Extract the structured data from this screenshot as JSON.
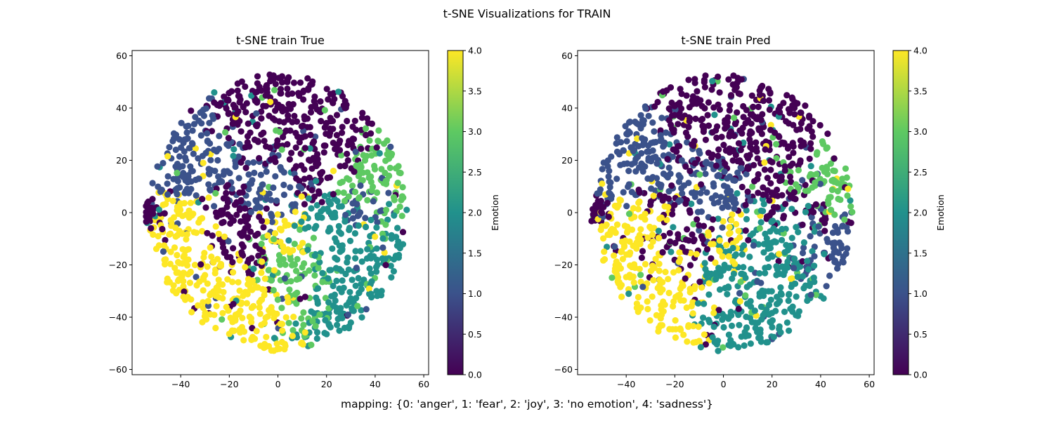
{
  "figure": {
    "suptitle": "t-SNE Visualizations for TRAIN",
    "footer": "mapping: {0: 'anger', 1: 'fear', 2: 'joy', 3: 'no emotion', 4: 'sadness'}"
  },
  "colormap": {
    "name": "viridis",
    "stops": [
      "#440154",
      "#3b528b",
      "#21918c",
      "#5ec962",
      "#fde725"
    ]
  },
  "chart_data": [
    {
      "type": "scatter",
      "title": "t-SNE train True",
      "xlim": [
        -60,
        62
      ],
      "ylim": [
        -62,
        62
      ],
      "xticks": [
        -40,
        -20,
        0,
        20,
        40,
        60
      ],
      "yticks": [
        -60,
        -40,
        -20,
        0,
        20,
        40,
        60
      ],
      "colorbar": {
        "label": "Emotion",
        "range": [
          0.0,
          4.0
        ],
        "ticks": [
          "0.0",
          "0.5",
          "1.0",
          "1.5",
          "2.0",
          "2.5",
          "3.0",
          "3.5",
          "4.0"
        ]
      },
      "regions": [
        {
          "cx": -5,
          "cy": 40,
          "r": 14,
          "class": 0
        },
        {
          "cx": 20,
          "cy": 45,
          "r": 6,
          "class": 0
        },
        {
          "cx": 15,
          "cy": 20,
          "r": 10,
          "class": 0
        },
        {
          "cx": -20,
          "cy": 0,
          "r": 8,
          "class": 0
        },
        {
          "cx": -18,
          "cy": -10,
          "r": 8,
          "class": 0
        },
        {
          "cx": -52,
          "cy": 0,
          "r": 3,
          "class": 0
        },
        {
          "cx": 35,
          "cy": 2,
          "r": 6,
          "class": 1
        },
        {
          "cx": -35,
          "cy": 20,
          "r": 12,
          "class": 1
        },
        {
          "cx": -5,
          "cy": 10,
          "r": 10,
          "class": 1
        },
        {
          "cx": 35,
          "cy": -25,
          "r": 12,
          "class": 2
        },
        {
          "cx": 20,
          "cy": -10,
          "r": 12,
          "class": 2
        },
        {
          "cx": 45,
          "cy": -25,
          "r": 8,
          "class": 2
        },
        {
          "cx": 10,
          "cy": -20,
          "r": 10,
          "class": 3
        },
        {
          "cx": 40,
          "cy": 10,
          "r": 10,
          "class": 3
        },
        {
          "cx": -25,
          "cy": -30,
          "r": 10,
          "class": 4
        },
        {
          "cx": -10,
          "cy": -35,
          "r": 8,
          "class": 4
        },
        {
          "cx": -35,
          "cy": -5,
          "r": 8,
          "class": 4
        },
        {
          "cx": 5,
          "cy": -10,
          "r": 6,
          "class": 4
        }
      ],
      "seed": 7
    },
    {
      "type": "scatter",
      "title": "t-SNE train Pred",
      "xlim": [
        -60,
        62
      ],
      "ylim": [
        -62,
        62
      ],
      "xticks": [
        -40,
        -20,
        0,
        20,
        40,
        60
      ],
      "yticks": [
        -60,
        -40,
        -20,
        0,
        20,
        40,
        60
      ],
      "colorbar": {
        "label": "Emotion",
        "range": [
          0.0,
          4.0
        ],
        "ticks": [
          "0.0",
          "0.5",
          "1.0",
          "1.5",
          "2.0",
          "2.5",
          "3.0",
          "3.5",
          "4.0"
        ]
      },
      "regions": [
        {
          "cx": -2,
          "cy": 40,
          "r": 15,
          "class": 0
        },
        {
          "cx": 18,
          "cy": 22,
          "r": 12,
          "class": 0
        },
        {
          "cx": -20,
          "cy": -8,
          "r": 10,
          "class": 0
        },
        {
          "cx": 35,
          "cy": 2,
          "r": 7,
          "class": 0
        },
        {
          "cx": -52,
          "cy": 0,
          "r": 3,
          "class": 0
        },
        {
          "cx": -35,
          "cy": 20,
          "r": 12,
          "class": 1
        },
        {
          "cx": -5,
          "cy": 10,
          "r": 10,
          "class": 1
        },
        {
          "cx": 40,
          "cy": -20,
          "r": 10,
          "class": 1
        },
        {
          "cx": 20,
          "cy": -20,
          "r": 14,
          "class": 2
        },
        {
          "cx": 35,
          "cy": -28,
          "r": 12,
          "class": 2
        },
        {
          "cx": 5,
          "cy": -30,
          "r": 8,
          "class": 2
        },
        {
          "cx": 40,
          "cy": 10,
          "r": 8,
          "class": 3
        },
        {
          "cx": -30,
          "cy": -30,
          "r": 12,
          "class": 4
        },
        {
          "cx": -35,
          "cy": -5,
          "r": 8,
          "class": 4
        },
        {
          "cx": 2,
          "cy": -10,
          "r": 6,
          "class": 4
        }
      ],
      "seed": 11
    }
  ]
}
